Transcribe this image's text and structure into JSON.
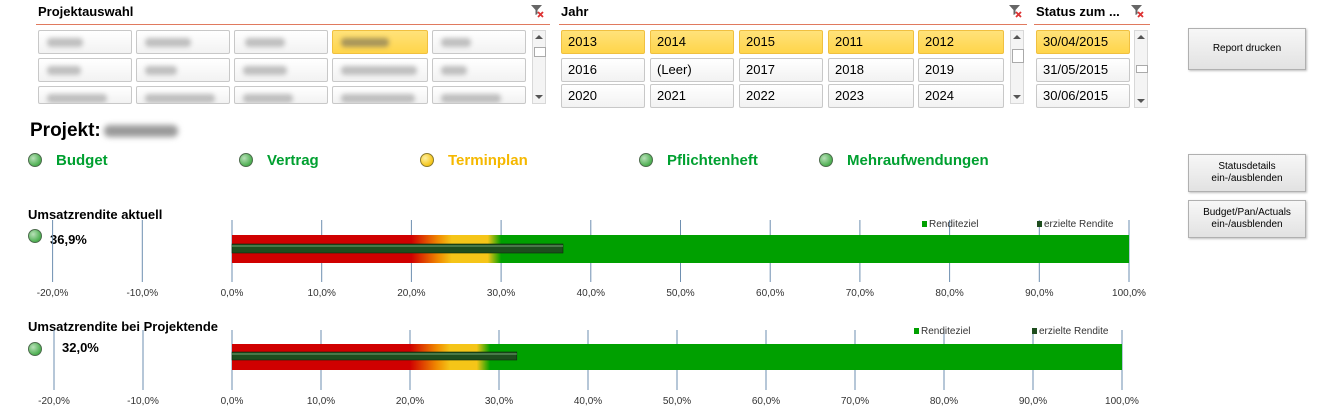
{
  "slicers": {
    "projekt": {
      "title": "Projektauswahl"
    },
    "jahr": {
      "title": "Jahr",
      "rows": [
        [
          "2013",
          "2014",
          "2015",
          "2011",
          "2012"
        ],
        [
          "2016",
          "(Leer)",
          "2017",
          "2018",
          "2019"
        ],
        [
          "2020",
          "2021",
          "2022",
          "2023",
          "2024"
        ]
      ],
      "selected": [
        "2013",
        "2014",
        "2015",
        "2011",
        "2012"
      ]
    },
    "status": {
      "title": "Status zum ...",
      "items": [
        "30/04/2015",
        "31/05/2015",
        "30/06/2015"
      ],
      "selected": [
        "30/04/2015"
      ]
    }
  },
  "buttons": {
    "report": "Report drucken",
    "statusdetails": "Statusdetails ein-/ausblenden",
    "budget": "Budget/Pan/Actuals ein-/ausblenden"
  },
  "project_label": "Projekt:",
  "status_items": [
    {
      "label": "Budget",
      "color": "green"
    },
    {
      "label": "Vertrag",
      "color": "green"
    },
    {
      "label": "Terminplan",
      "color": "yellow"
    },
    {
      "label": "Pflichtenheft",
      "color": "green"
    },
    {
      "label": "Mehraufwendungen",
      "color": "green"
    }
  ],
  "colors": {
    "green_text": "#00a030",
    "yellow_text": "#f5b800",
    "slicer_selected": "#ffd54a",
    "bar_red": "#d00000",
    "bar_yellow": "#f5c518",
    "bar_green": "#00a000",
    "bar_dark": "#1e4d1e"
  },
  "chart_data": [
    {
      "type": "bar",
      "title": "Umsatzrendite aktuell",
      "value_label": "36,9%",
      "actual": 36.9,
      "bands": [
        {
          "name": "red",
          "from": 0,
          "to": 22
        },
        {
          "name": "yellow",
          "from": 22,
          "to": 30
        },
        {
          "name": "green",
          "from": 30,
          "to": 100
        }
      ],
      "xlim": [
        -20,
        100
      ],
      "ticks": [
        -20,
        -10,
        0,
        10,
        20,
        30,
        40,
        50,
        60,
        70,
        80,
        90,
        100
      ],
      "tick_labels": [
        "-20,0%",
        "-10,0%",
        "0,0%",
        "10,0%",
        "20,0%",
        "30,0%",
        "40,0%",
        "50,0%",
        "60,0%",
        "70,0%",
        "80,0%",
        "90,0%",
        "100,0%"
      ],
      "legend": [
        "Renditeziel",
        "erzielte Rendite"
      ],
      "legend_position": "top-right"
    },
    {
      "type": "bar",
      "title": "Umsatzrendite bei Projektende",
      "value_label": "32,0%",
      "actual": 32.0,
      "bands": [
        {
          "name": "red",
          "from": 0,
          "to": 22
        },
        {
          "name": "yellow",
          "from": 22,
          "to": 29
        },
        {
          "name": "green",
          "from": 29,
          "to": 100
        }
      ],
      "xlim": [
        -20,
        100
      ],
      "ticks": [
        -20,
        -10,
        0,
        10,
        20,
        30,
        40,
        50,
        60,
        70,
        80,
        90,
        100
      ],
      "tick_labels": [
        "-20,0%",
        "-10,0%",
        "0,0%",
        "10,0%",
        "20,0%",
        "30,0%",
        "40,0%",
        "50,0%",
        "60,0%",
        "70,0%",
        "80,0%",
        "90,0%",
        "100,0%"
      ],
      "legend": [
        "Renditeziel",
        "erzielte Rendite"
      ],
      "legend_position": "top-right"
    }
  ]
}
